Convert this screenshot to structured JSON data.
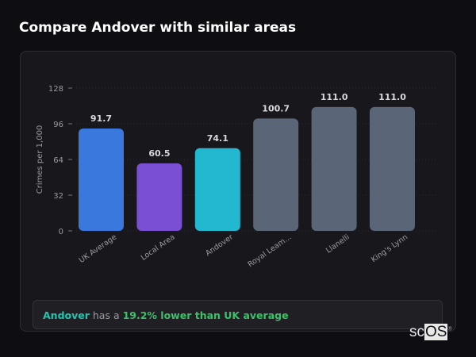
{
  "title": "Compare Andover with similar areas",
  "chart_data": {
    "type": "bar",
    "ylabel": "Crimes per 1,000",
    "ylim": [
      0,
      128
    ],
    "yticks": [
      0,
      32,
      64,
      96,
      128
    ],
    "grid": true,
    "categories": [
      "UK Average",
      "Local Area",
      "Andover",
      "Royal Leam...",
      "Llanelli",
      "King's Lynn"
    ],
    "values": [
      91.7,
      60.5,
      74.1,
      100.7,
      111.0,
      111.0
    ],
    "data_labels": [
      "91.7",
      "60.5",
      "74.1",
      "100.7",
      "111.0",
      "111.0"
    ],
    "colors": [
      "#3b78dd",
      "#7b4fd4",
      "#22b8cf",
      "#5a6678",
      "#5a6678",
      "#5a6678"
    ]
  },
  "summary": {
    "area": "Andover",
    "middle": " has a ",
    "comparison": "19.2% lower than UK average"
  },
  "logo": {
    "text_a": "sc",
    "text_b": "OS",
    "mark": "®"
  }
}
